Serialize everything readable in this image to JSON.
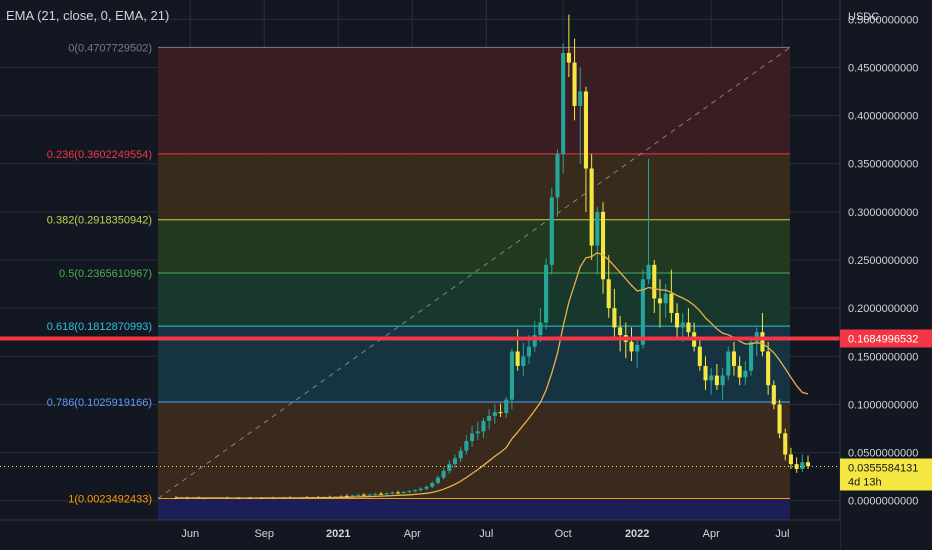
{
  "indicator": {
    "label": "EMA (21, close, 0, EMA, 21)"
  },
  "colors": {
    "background": "#131722",
    "bull": "#26a69a",
    "bear": "#f5e642",
    "ema": "#e8b04c",
    "hline": "#f23645",
    "current": "#f5e642"
  },
  "chart_data": {
    "type": "candlestick",
    "quote_currency": "USDC",
    "y_range": [
      -0.02,
      0.52
    ],
    "y_ticks": [
      "0.5000000000",
      "0.4500000000",
      "0.4000000000",
      "0.3500000000",
      "0.3000000000",
      "0.2500000000",
      "0.2000000000",
      "0.1500000000",
      "0.1000000000",
      "0.0500000000",
      "0.0000000000"
    ],
    "x_ticks": [
      "Jun",
      "Sep",
      "2021",
      "Apr",
      "Jul",
      "Oct",
      "2022",
      "Apr",
      "Jul"
    ],
    "horizontal_line": {
      "price": 0.1684996532,
      "label": "0.1684996532"
    },
    "current_price": {
      "price": 0.0355584131,
      "label": "0.0355584131",
      "countdown": "4d 13h"
    },
    "fibonacci": [
      {
        "label": "0(0.4707729502)",
        "price": 0.4707729502,
        "color": "#787b86",
        "fill": "#3b1d24"
      },
      {
        "label": "0.236(0.3602249554)",
        "price": 0.3602249554,
        "color": "#f23645",
        "fill": "#3a2c1b"
      },
      {
        "label": "0.382(0.2918350942)",
        "price": 0.2918350942,
        "color": "#c6d34b",
        "fill": "#233a20"
      },
      {
        "label": "0.5(0.2365610967)",
        "price": 0.2365610967,
        "color": "#4caf50",
        "fill": "#173a2c"
      },
      {
        "label": "0.618(0.1812870993)",
        "price": 0.1812870993,
        "color": "#26c6da",
        "fill": "#163544"
      },
      {
        "label": "0.786(0.1025919166)",
        "price": 0.1025919166,
        "color": "#5b9cf6",
        "fill": "#3b2b1d"
      },
      {
        "label": "1(0.0023492433)",
        "price": 0.0023492433,
        "color": "#ff9800",
        "fill": "#1c1f5e"
      }
    ],
    "trend_line": {
      "from": 0.0023492433,
      "to": 0.4707729502
    },
    "ohlc": [
      [
        0.003,
        0.0046,
        0.0019,
        0.0027
      ],
      [
        0.0027,
        0.0039,
        0.0023,
        0.0035
      ],
      [
        0.0035,
        0.0042,
        0.0016,
        0.0025
      ],
      [
        0.0025,
        0.004,
        0.0016,
        0.0031
      ],
      [
        0.0031,
        0.0044,
        0.0022,
        0.0028
      ],
      [
        0.0028,
        0.0034,
        0.0018,
        0.0026
      ],
      [
        0.0026,
        0.0034,
        0.0018,
        0.0032
      ],
      [
        0.0032,
        0.0037,
        0.0025,
        0.0027
      ],
      [
        0.0027,
        0.0038,
        0.002,
        0.003
      ],
      [
        0.003,
        0.0042,
        0.0022,
        0.0026
      ],
      [
        0.0026,
        0.0032,
        0.0018,
        0.0028
      ],
      [
        0.0028,
        0.0039,
        0.0021,
        0.0025
      ],
      [
        0.0025,
        0.0033,
        0.0017,
        0.0029
      ],
      [
        0.0029,
        0.004,
        0.0022,
        0.0027
      ],
      [
        0.0027,
        0.0034,
        0.0019,
        0.003
      ],
      [
        0.003,
        0.0038,
        0.0023,
        0.0028
      ],
      [
        0.0028,
        0.0036,
        0.0021,
        0.0032
      ],
      [
        0.0032,
        0.0041,
        0.0025,
        0.0029
      ],
      [
        0.0029,
        0.0037,
        0.0022,
        0.0031
      ],
      [
        0.0031,
        0.0043,
        0.0024,
        0.0034
      ],
      [
        0.0034,
        0.0045,
        0.0028,
        0.003
      ],
      [
        0.003,
        0.0039,
        0.0024,
        0.0033
      ],
      [
        0.0033,
        0.0042,
        0.0026,
        0.0036
      ],
      [
        0.0036,
        0.0047,
        0.0029,
        0.0032
      ],
      [
        0.0032,
        0.004,
        0.0026,
        0.0038
      ],
      [
        0.0038,
        0.0049,
        0.0031,
        0.0035
      ],
      [
        0.0035,
        0.0044,
        0.0029,
        0.004
      ],
      [
        0.004,
        0.0052,
        0.0033,
        0.0037
      ],
      [
        0.0037,
        0.0047,
        0.003,
        0.0044
      ],
      [
        0.0044,
        0.006,
        0.0036,
        0.005
      ],
      [
        0.005,
        0.0066,
        0.0041,
        0.0045
      ],
      [
        0.0045,
        0.0059,
        0.0037,
        0.0055
      ],
      [
        0.0055,
        0.0072,
        0.0046,
        0.0062
      ],
      [
        0.0062,
        0.0078,
        0.0052,
        0.0056
      ],
      [
        0.0056,
        0.0071,
        0.0048,
        0.0065
      ],
      [
        0.0065,
        0.0084,
        0.0055,
        0.0072
      ],
      [
        0.0072,
        0.0092,
        0.0061,
        0.0067
      ],
      [
        0.0067,
        0.0085,
        0.0058,
        0.0078
      ],
      [
        0.0078,
        0.0097,
        0.0066,
        0.0085
      ],
      [
        0.0085,
        0.0104,
        0.0072,
        0.008
      ],
      [
        0.008,
        0.0099,
        0.0069,
        0.0092
      ],
      [
        0.0092,
        0.0113,
        0.0079,
        0.0098
      ],
      [
        0.0098,
        0.0122,
        0.0085,
        0.011
      ],
      [
        0.011,
        0.014,
        0.0096,
        0.0125
      ],
      [
        0.0125,
        0.016,
        0.011,
        0.0145
      ],
      [
        0.0145,
        0.02,
        0.013,
        0.0185
      ],
      [
        0.0185,
        0.026,
        0.017,
        0.024
      ],
      [
        0.024,
        0.034,
        0.022,
        0.031
      ],
      [
        0.031,
        0.042,
        0.028,
        0.038
      ],
      [
        0.038,
        0.048,
        0.034,
        0.044
      ],
      [
        0.044,
        0.056,
        0.04,
        0.052
      ],
      [
        0.052,
        0.068,
        0.048,
        0.062
      ],
      [
        0.062,
        0.078,
        0.056,
        0.07
      ],
      [
        0.07,
        0.082,
        0.063,
        0.072
      ],
      [
        0.072,
        0.086,
        0.065,
        0.083
      ],
      [
        0.083,
        0.095,
        0.074,
        0.088
      ],
      [
        0.088,
        0.1,
        0.08,
        0.092
      ],
      [
        0.092,
        0.101,
        0.087,
        0.091
      ],
      [
        0.091,
        0.108,
        0.086,
        0.105
      ],
      [
        0.105,
        0.158,
        0.095,
        0.155
      ],
      [
        0.155,
        0.178,
        0.135,
        0.14
      ],
      [
        0.14,
        0.164,
        0.13,
        0.15
      ],
      [
        0.15,
        0.172,
        0.142,
        0.16
      ],
      [
        0.16,
        0.187,
        0.155,
        0.172
      ],
      [
        0.172,
        0.2,
        0.165,
        0.185
      ],
      [
        0.185,
        0.252,
        0.178,
        0.245
      ],
      [
        0.245,
        0.325,
        0.235,
        0.315
      ],
      [
        0.315,
        0.365,
        0.295,
        0.36
      ],
      [
        0.36,
        0.475,
        0.34,
        0.465
      ],
      [
        0.465,
        0.505,
        0.44,
        0.455
      ],
      [
        0.455,
        0.48,
        0.395,
        0.41
      ],
      [
        0.41,
        0.45,
        0.35,
        0.425
      ],
      [
        0.425,
        0.43,
        0.3,
        0.345
      ],
      [
        0.345,
        0.36,
        0.25,
        0.265
      ],
      [
        0.265,
        0.305,
        0.235,
        0.3
      ],
      [
        0.3,
        0.31,
        0.215,
        0.23
      ],
      [
        0.23,
        0.255,
        0.19,
        0.2
      ],
      [
        0.2,
        0.22,
        0.17,
        0.18
      ],
      [
        0.18,
        0.192,
        0.155,
        0.172
      ],
      [
        0.172,
        0.185,
        0.148,
        0.165
      ],
      [
        0.165,
        0.18,
        0.145,
        0.155
      ],
      [
        0.155,
        0.168,
        0.138,
        0.162
      ],
      [
        0.162,
        0.24,
        0.158,
        0.23
      ],
      [
        0.23,
        0.355,
        0.225,
        0.245
      ],
      [
        0.245,
        0.25,
        0.195,
        0.21
      ],
      [
        0.21,
        0.23,
        0.18,
        0.205
      ],
      [
        0.205,
        0.225,
        0.19,
        0.215
      ],
      [
        0.215,
        0.24,
        0.185,
        0.195
      ],
      [
        0.195,
        0.205,
        0.17,
        0.18
      ],
      [
        0.18,
        0.195,
        0.165,
        0.185
      ],
      [
        0.185,
        0.2,
        0.17,
        0.175
      ],
      [
        0.175,
        0.185,
        0.155,
        0.16
      ],
      [
        0.16,
        0.168,
        0.135,
        0.14
      ],
      [
        0.14,
        0.15,
        0.115,
        0.125
      ],
      [
        0.125,
        0.138,
        0.11,
        0.13
      ],
      [
        0.13,
        0.142,
        0.115,
        0.12
      ],
      [
        0.12,
        0.138,
        0.105,
        0.13
      ],
      [
        0.13,
        0.16,
        0.125,
        0.155
      ],
      [
        0.155,
        0.165,
        0.13,
        0.14
      ],
      [
        0.14,
        0.15,
        0.12,
        0.128
      ],
      [
        0.128,
        0.145,
        0.12,
        0.135
      ],
      [
        0.135,
        0.17,
        0.13,
        0.165
      ],
      [
        0.165,
        0.18,
        0.15,
        0.175
      ],
      [
        0.175,
        0.195,
        0.15,
        0.155
      ],
      [
        0.155,
        0.165,
        0.11,
        0.12
      ],
      [
        0.12,
        0.125,
        0.095,
        0.1
      ],
      [
        0.1,
        0.105,
        0.065,
        0.07
      ],
      [
        0.07,
        0.075,
        0.042,
        0.048
      ],
      [
        0.048,
        0.055,
        0.033,
        0.038
      ],
      [
        0.038,
        0.045,
        0.029,
        0.033
      ],
      [
        0.033,
        0.048,
        0.03,
        0.04
      ],
      [
        0.04,
        0.047,
        0.033,
        0.036
      ]
    ],
    "ema": [
      0.0029,
      0.0029,
      0.0028,
      0.0029,
      0.0029,
      0.0028,
      0.0029,
      0.0028,
      0.0029,
      0.0028,
      0.0028,
      0.0028,
      0.0028,
      0.0028,
      0.0028,
      0.0028,
      0.0029,
      0.0029,
      0.0029,
      0.0029,
      0.003,
      0.003,
      0.003,
      0.0031,
      0.0031,
      0.0032,
      0.0032,
      0.0033,
      0.0034,
      0.0035,
      0.0036,
      0.0038,
      0.004,
      0.0041,
      0.0043,
      0.0046,
      0.0048,
      0.005,
      0.0053,
      0.0056,
      0.0059,
      0.0062,
      0.0066,
      0.0071,
      0.0077,
      0.0087,
      0.0101,
      0.012,
      0.0144,
      0.0171,
      0.0203,
      0.0241,
      0.0283,
      0.0323,
      0.0369,
      0.0415,
      0.0461,
      0.0502,
      0.0552,
      0.0643,
      0.0712,
      0.0784,
      0.0858,
      0.0937,
      0.102,
      0.115,
      0.1325,
      0.1532,
      0.1815,
      0.2063,
      0.2248,
      0.243,
      0.2523,
      0.2534,
      0.2576,
      0.2551,
      0.2501,
      0.2437,
      0.2371,
      0.2305,
      0.2236,
      0.2179,
      0.219,
      0.2214,
      0.2203,
      0.2189,
      0.2186,
      0.2164,
      0.2131,
      0.2105,
      0.2073,
      0.203,
      0.1972,
      0.1899,
      0.1844,
      0.1785,
      0.1741,
      0.1723,
      0.1694,
      0.1656,
      0.1628,
      0.163,
      0.1641,
      0.1632,
      0.1591,
      0.1537,
      0.1461,
      0.1373,
      0.1282,
      0.1195,
      0.1125,
      0.111
    ]
  }
}
